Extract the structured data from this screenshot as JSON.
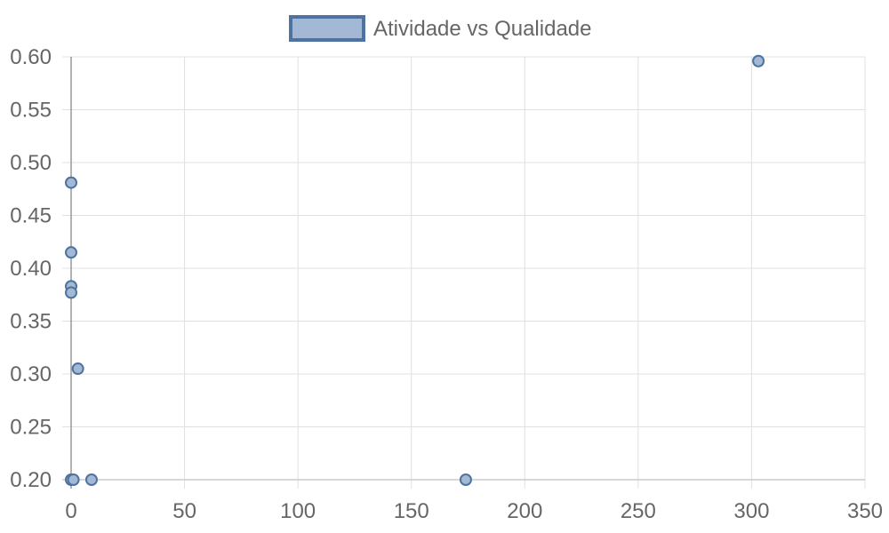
{
  "chart_data": {
    "type": "scatter",
    "title": "",
    "xlabel": "",
    "ylabel": "",
    "xlim": [
      0,
      350
    ],
    "ylim": [
      0.2,
      0.6
    ],
    "x_ticks": [
      0,
      50,
      100,
      150,
      200,
      250,
      300,
      350
    ],
    "y_ticks": [
      0.2,
      0.25,
      0.3,
      0.35,
      0.4,
      0.45,
      0.5,
      0.55,
      0.6
    ],
    "x_tick_labels": [
      "0",
      "50",
      "100",
      "150",
      "200",
      "250",
      "300",
      "350"
    ],
    "y_tick_labels": [
      "0.20",
      "0.25",
      "0.30",
      "0.35",
      "0.40",
      "0.45",
      "0.50",
      "0.55",
      "0.60"
    ],
    "grid": true,
    "legend_position": "top-center",
    "series": [
      {
        "name": "Atividade vs Qualidade",
        "color": "#4e73a0",
        "fill": "#a3b8d4",
        "points": [
          {
            "x": 0,
            "y": 0.481
          },
          {
            "x": 0,
            "y": 0.415
          },
          {
            "x": 0,
            "y": 0.383
          },
          {
            "x": 0,
            "y": 0.377
          },
          {
            "x": 3,
            "y": 0.305
          },
          {
            "x": 0,
            "y": 0.2
          },
          {
            "x": 1,
            "y": 0.2
          },
          {
            "x": 9,
            "y": 0.2
          },
          {
            "x": 174,
            "y": 0.2
          },
          {
            "x": 303,
            "y": 0.596
          }
        ]
      }
    ]
  }
}
